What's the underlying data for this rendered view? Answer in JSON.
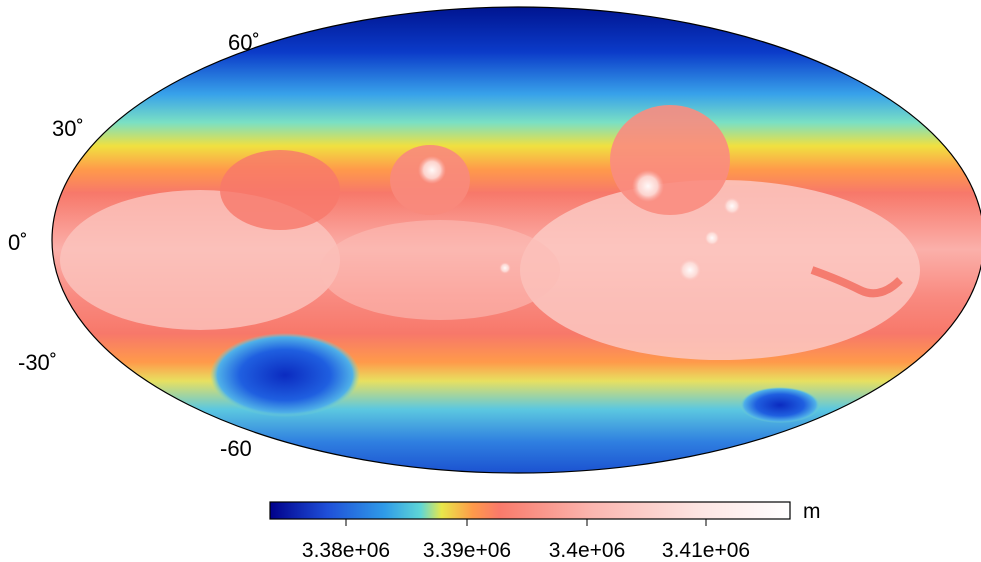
{
  "map": {
    "projection": "Hammer-Aitoff (global)",
    "lat_labels": [
      "60˚",
      "30˚",
      "0˚",
      "-30˚",
      "-60"
    ],
    "colorbar": {
      "unit": "m",
      "ticks": [
        "3.38e+06",
        "3.39e+06",
        "3.4e+06",
        "3.41e+06"
      ],
      "colors": [
        "#00008b",
        "#1f4fd8",
        "#2f9be8",
        "#5fd6d6",
        "#e8e84a",
        "#ff9a4a",
        "#fa7a6a",
        "#fbb6b0",
        "#fde4e1",
        "#ffffff"
      ]
    }
  }
}
